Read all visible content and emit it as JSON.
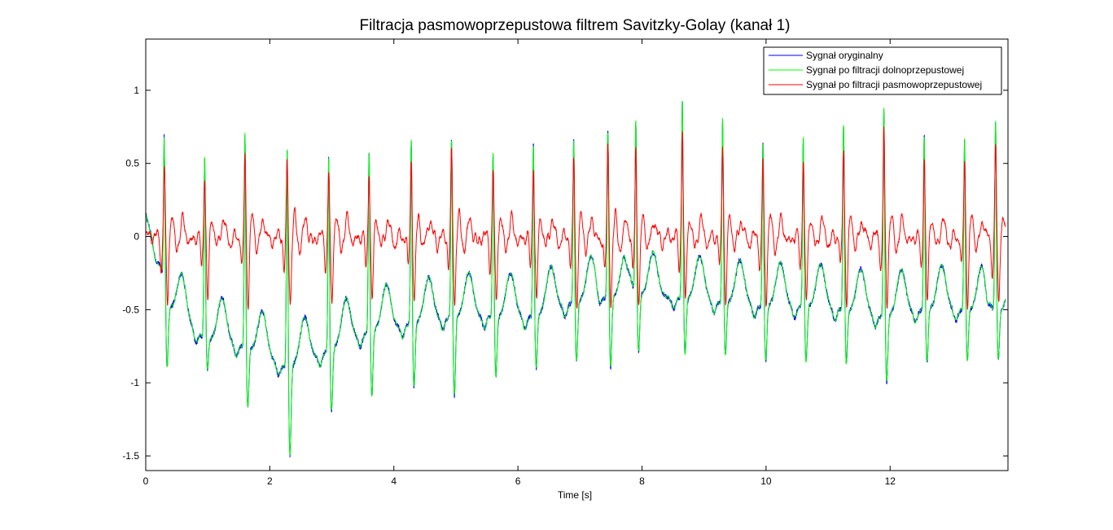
{
  "chart_data": {
    "type": "line",
    "title": "Filtracja pasmowoprzepustowa filtrem Savitzky-Golay (kanał 1)",
    "xlabel": "Time [s]",
    "ylabel": "",
    "xlim": [
      0,
      13.9
    ],
    "ylim": [
      -1.6,
      1.35
    ],
    "x_ticks": [
      0,
      2,
      4,
      6,
      8,
      10,
      12
    ],
    "x_tick_labels": [
      "0",
      "2",
      "4",
      "6",
      "8",
      "10",
      "12"
    ],
    "y_ticks": [
      1,
      0.5,
      0,
      -0.5,
      -1,
      -1.5
    ],
    "y_tick_labels": [
      "1",
      "0.5",
      "0",
      "-0.5",
      "-1",
      "-1.5"
    ],
    "grid": false,
    "legend_position": "top-right",
    "beats": {
      "times": [
        0.3,
        0.95,
        1.6,
        2.28,
        2.95,
        3.6,
        4.28,
        4.93,
        5.6,
        6.25,
        6.9,
        7.45,
        7.9,
        8.65,
        9.3,
        9.95,
        10.6,
        11.25,
        11.9,
        12.55,
        13.2,
        13.7
      ],
      "r_peak": [
        0.6,
        0.56,
        0.72,
        0.62,
        0.57,
        0.6,
        0.68,
        0.7,
        0.58,
        0.65,
        0.68,
        0.75,
        0.8,
        0.95,
        0.82,
        0.67,
        0.7,
        0.78,
        0.9,
        0.72,
        0.68,
        0.8
      ],
      "s_trough": [
        -0.93,
        -0.92,
        -1.2,
        -1.57,
        -1.25,
        -1.15,
        -1.08,
        -1.15,
        -1.0,
        -0.95,
        -0.9,
        -0.95,
        -0.84,
        -0.84,
        -0.85,
        -0.9,
        -0.9,
        -0.9,
        -1.05,
        -0.9,
        -0.88,
        -0.88
      ],
      "baseline": [
        -0.45,
        -0.7,
        -0.75,
        -0.9,
        -0.78,
        -0.65,
        -0.6,
        -0.55,
        -0.55,
        -0.55,
        -0.45,
        -0.42,
        -0.4,
        -0.42,
        -0.45,
        -0.48,
        -0.48,
        -0.5,
        -0.55,
        -0.5,
        -0.5,
        -0.5
      ]
    },
    "series": [
      {
        "name": "Sygnał oryginalny",
        "color": "#0000ff"
      },
      {
        "name": "Sygnał po filtracji dolnoprzepustowej",
        "color": "#00ff00"
      },
      {
        "name": "Sygnał po filtracji pasmowoprzepustowej",
        "color": "#ff0000"
      }
    ]
  }
}
